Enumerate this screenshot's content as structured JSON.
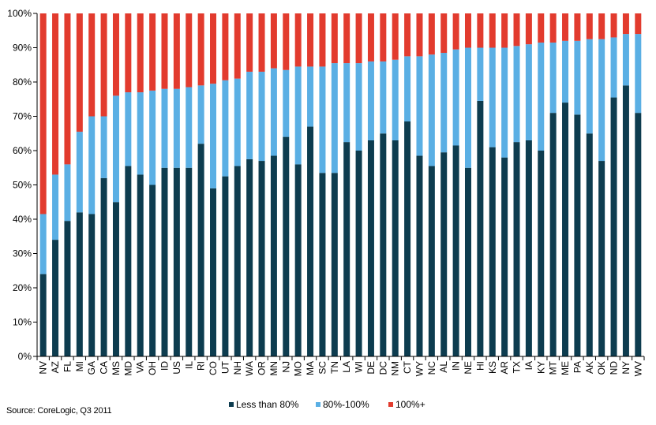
{
  "chart_data": {
    "type": "bar",
    "stacked": true,
    "categories": [
      "NV",
      "AZ",
      "FL",
      "MI",
      "GA",
      "CA",
      "MS",
      "MD",
      "VA",
      "OH",
      "ID",
      "US",
      "IL",
      "RI",
      "CO",
      "UT",
      "NH",
      "WA",
      "OR",
      "MN",
      "NJ",
      "MO",
      "MA",
      "SC",
      "TN",
      "LA",
      "WI",
      "DE",
      "DC",
      "NM",
      "CT",
      "WY",
      "NC",
      "AL",
      "IN",
      "NE",
      "HI",
      "KS",
      "AR",
      "TX",
      "IA",
      "KY",
      "MT",
      "ME",
      "PA",
      "AK",
      "OK",
      "ND",
      "NY",
      "WV"
    ],
    "series": [
      {
        "name": "Less than 80%",
        "color": "#0d3c4f",
        "values": [
          24,
          34,
          39.5,
          42,
          41.5,
          52,
          45,
          55.5,
          53,
          50,
          55,
          55,
          55,
          62,
          49,
          52.5,
          55.5,
          57.5,
          57,
          58.5,
          64,
          56,
          67,
          53.5,
          53.5,
          62.5,
          60,
          63,
          65,
          63,
          68.5,
          58.5,
          55.5,
          59.5,
          61.5,
          55,
          74.5,
          61,
          58,
          62.5,
          63,
          60,
          71,
          74,
          70.5,
          65,
          57,
          75.5,
          79,
          71
        ]
      },
      {
        "name": "80%-100%",
        "color": "#5aafe4",
        "values": [
          17.5,
          19,
          16.5,
          23.5,
          28.5,
          18,
          31,
          21.5,
          24,
          27.5,
          23,
          23,
          23.5,
          17,
          30.5,
          28,
          25.5,
          25.5,
          26,
          25.5,
          19.5,
          28.5,
          17.5,
          31,
          32,
          23,
          25.5,
          23,
          21,
          23.5,
          19,
          29,
          32.5,
          29,
          28,
          35,
          15.5,
          29,
          32,
          28,
          28,
          31.5,
          20.5,
          18,
          21.5,
          27.5,
          35.5,
          17.5,
          15,
          23
        ]
      },
      {
        "name": "100%+",
        "color": "#e23b2e",
        "values": [
          58.5,
          47,
          44,
          34.5,
          30,
          30,
          24,
          23,
          23,
          22.5,
          22,
          22,
          21.5,
          21,
          20.5,
          19.5,
          19,
          17,
          17,
          16,
          16.5,
          15.5,
          15.5,
          15.5,
          14.5,
          14.5,
          14.5,
          14,
          14,
          13.5,
          12.5,
          12.5,
          12,
          11.5,
          10.5,
          10,
          10,
          10,
          10,
          9.5,
          9,
          8.5,
          8.5,
          8,
          8,
          7.5,
          7.5,
          7,
          6,
          6
        ]
      }
    ],
    "y_ticks": [
      "0%",
      "10%",
      "20%",
      "30%",
      "40%",
      "50%",
      "60%",
      "70%",
      "80%",
      "90%",
      "100%"
    ],
    "ylim": [
      0,
      100
    ],
    "legend_position": "bottom-center",
    "grid": false
  },
  "source_text": "Source: CoreLogic, Q3 2011"
}
